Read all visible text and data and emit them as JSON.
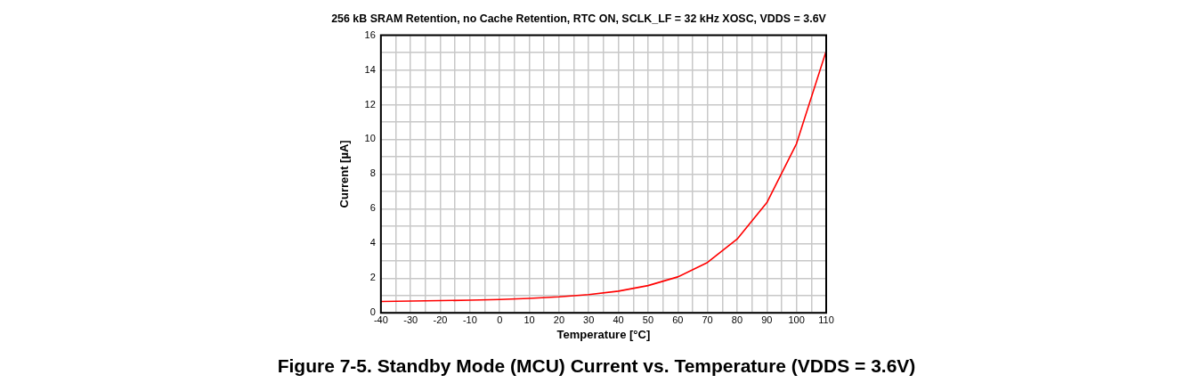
{
  "chart_data": {
    "type": "line",
    "title": "256 kB SRAM Retention, no Cache Retention, RTC ON, SCLK_LF = 32 kHz XOSC, VDDS = 3.6V",
    "xlabel": "Temperature [°C]",
    "ylabel": "Current [µA]",
    "annotations": [
      "Figure 7-5. Standby Mode (MCU) Current vs. Temperature (VDDS = 3.6V)"
    ],
    "x": [
      -40,
      -30,
      -20,
      -10,
      0,
      10,
      20,
      30,
      40,
      50,
      60,
      70,
      80,
      90,
      100,
      110
    ],
    "series": [
      {
        "color": "#ff0000",
        "values": [
          0.65,
          0.68,
          0.7,
          0.73,
          0.77,
          0.83,
          0.92,
          1.05,
          1.25,
          1.57,
          2.07,
          2.9,
          4.25,
          6.35,
          9.75,
          15.1
        ]
      }
    ],
    "xlim": [
      -40,
      110
    ],
    "xticks": [
      -40,
      {
        "value": -35,
        "label": null
      },
      -30,
      {
        "value": -25,
        "label": null
      },
      -20,
      {
        "value": -15,
        "label": null
      },
      -10,
      {
        "value": -5,
        "label": null
      },
      0,
      {
        "value": 5,
        "label": null
      },
      10,
      {
        "value": 15,
        "label": null
      },
      20,
      {
        "value": 25,
        "label": null
      },
      30,
      {
        "value": 35,
        "label": null
      },
      40,
      {
        "value": 45,
        "label": null
      },
      50,
      {
        "value": 55,
        "label": null
      },
      60,
      {
        "value": 65,
        "label": null
      },
      70,
      {
        "value": 75,
        "label": null
      },
      80,
      {
        "value": 85,
        "label": null
      },
      90,
      {
        "value": 95,
        "label": null
      },
      100,
      {
        "value": 105,
        "label": null
      },
      110
    ],
    "ylim": [
      0,
      16
    ],
    "yticks": [
      0,
      {
        "value": 1,
        "label": null
      },
      2,
      {
        "value": 3,
        "label": null
      },
      4,
      {
        "value": 5,
        "label": null
      },
      6,
      {
        "value": 7,
        "label": null
      },
      8,
      {
        "value": 9,
        "label": null
      },
      10,
      {
        "value": 11,
        "label": null
      },
      12,
      {
        "value": 13,
        "label": null
      },
      14,
      {
        "value": 15,
        "label": null
      },
      16
    ],
    "grid": true,
    "legend": false,
    "marker": "none",
    "line_style": "solid"
  }
}
